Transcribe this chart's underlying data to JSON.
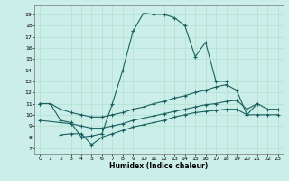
{
  "xlabel": "Humidex (Indice chaleur)",
  "xlim": [
    -0.5,
    23.5
  ],
  "ylim": [
    6.5,
    19.8
  ],
  "yticks": [
    7,
    8,
    9,
    10,
    11,
    12,
    13,
    14,
    15,
    16,
    17,
    18,
    19
  ],
  "xticks": [
    0,
    1,
    2,
    3,
    4,
    5,
    6,
    7,
    8,
    9,
    10,
    11,
    12,
    13,
    14,
    15,
    16,
    17,
    18,
    19,
    20,
    21,
    22,
    23
  ],
  "bg_color": "#cceee8",
  "grid_color": "#aaddcc",
  "line_color": "#1a6060",
  "line_width": 0.8,
  "marker": "+",
  "marker_size": 3,
  "curve1_x": [
    0,
    1,
    2,
    3,
    4,
    5,
    6,
    7,
    8,
    9,
    10,
    11,
    12,
    13,
    14,
    15,
    16,
    17,
    18
  ],
  "curve1_y": [
    11.0,
    11.0,
    9.5,
    9.3,
    8.0,
    8.1,
    8.3,
    11.0,
    14.0,
    17.5,
    19.1,
    19.0,
    19.0,
    18.7,
    18.0,
    15.2,
    16.5,
    13.0,
    13.0
  ],
  "curve2_x": [
    0,
    1,
    2,
    3,
    4,
    5,
    6,
    7,
    8,
    9,
    10,
    11,
    12,
    13,
    14,
    15,
    16,
    17,
    18,
    19,
    20,
    21
  ],
  "curve2_y": [
    11.0,
    11.0,
    10.5,
    10.2,
    10.0,
    9.8,
    9.8,
    10.0,
    10.2,
    10.5,
    10.7,
    11.0,
    11.2,
    11.5,
    11.7,
    12.0,
    12.2,
    12.5,
    12.7,
    12.2,
    10.0,
    11.0
  ],
  "curve3_x": [
    2,
    3,
    4,
    5,
    6,
    7,
    8,
    9,
    10,
    11,
    12,
    13,
    14,
    15,
    16,
    17,
    18,
    19,
    20,
    21,
    22,
    23
  ],
  "curve3_y": [
    8.2,
    8.3,
    8.3,
    7.3,
    8.0,
    8.3,
    8.6,
    8.9,
    9.1,
    9.3,
    9.5,
    9.8,
    10.0,
    10.2,
    10.3,
    10.4,
    10.5,
    10.5,
    10.0,
    10.0,
    10.0,
    10.0
  ],
  "curve4_x": [
    0,
    2,
    3,
    4,
    5,
    6,
    7,
    8,
    9,
    10,
    11,
    12,
    13,
    14,
    15,
    16,
    17,
    18,
    19,
    20,
    21,
    22,
    23
  ],
  "curve4_y": [
    9.5,
    9.3,
    9.2,
    9.0,
    8.8,
    8.8,
    9.0,
    9.2,
    9.5,
    9.7,
    9.9,
    10.1,
    10.3,
    10.5,
    10.7,
    10.9,
    11.0,
    11.2,
    11.3,
    10.5,
    11.0,
    10.5,
    10.5
  ]
}
